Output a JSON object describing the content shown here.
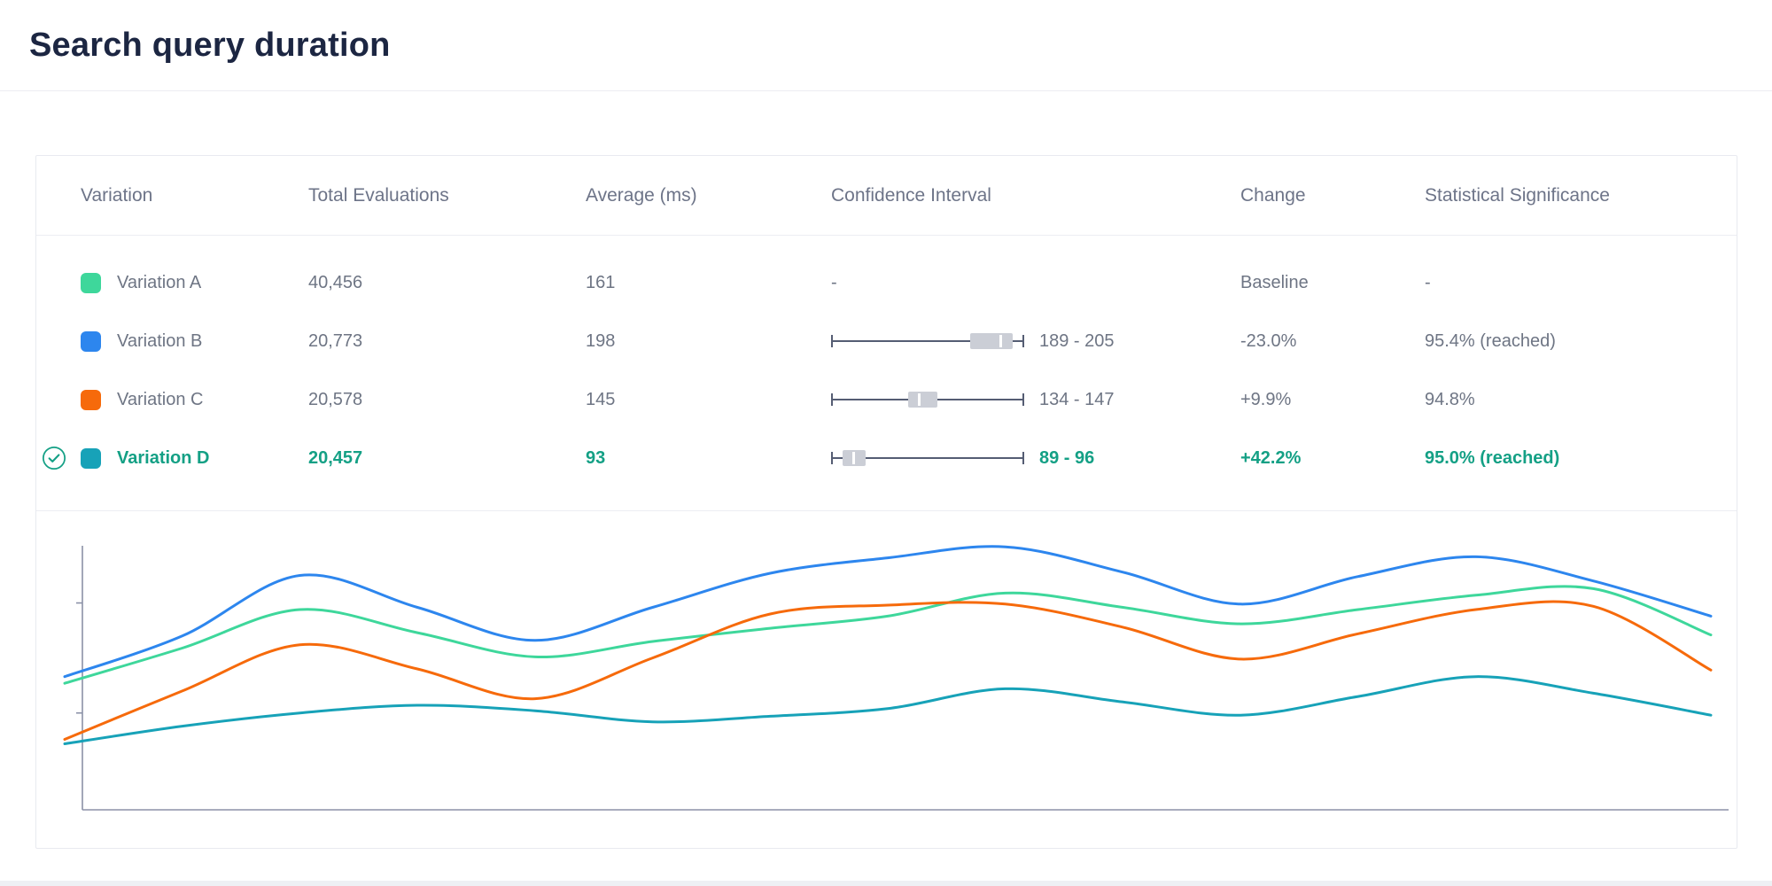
{
  "page": {
    "title": "Search query duration"
  },
  "table": {
    "columns": [
      "Variation",
      "Total Evaluations",
      "Average (ms)",
      "Confidence Interval",
      "Change",
      "Statistical Significance"
    ],
    "rows": [
      {
        "name": "Variation A",
        "color": "#3ed79b",
        "total": "40,456",
        "average": "161",
        "ci_text": "-",
        "ci_bar": null,
        "change": "Baseline",
        "significance": "-",
        "selected": false
      },
      {
        "name": "Variation B",
        "color": "#2d86ee",
        "total": "20,773",
        "average": "198",
        "ci_text": "189 - 205",
        "ci_bar": {
          "box_start": 0.72,
          "box_end": 0.94,
          "tick": 0.87
        },
        "change": "-23.0%",
        "significance": "95.4% (reached)",
        "selected": false
      },
      {
        "name": "Variation C",
        "color": "#f66a0b",
        "total": "20,578",
        "average": "145",
        "ci_text": "134 - 147",
        "ci_bar": {
          "box_start": 0.4,
          "box_end": 0.55,
          "tick": 0.45
        },
        "change": "+9.9%",
        "significance": "94.8%",
        "selected": false
      },
      {
        "name": "Variation D",
        "color": "#17a2b8",
        "total": "20,457",
        "average": "93",
        "ci_text": "89 - 96",
        "ci_bar": {
          "box_start": 0.06,
          "box_end": 0.18,
          "tick": 0.11
        },
        "change": "+42.2%",
        "significance": "95.0% (reached)",
        "selected": true
      }
    ],
    "selected_accent_color": "#14a085"
  },
  "icons": {
    "selected_row": "check-circle-icon",
    "row_swatch": "color-swatch"
  },
  "chart_data": {
    "type": "line",
    "title": "Search query duration over time (ms)",
    "x": [
      0,
      1,
      2,
      3,
      4,
      5,
      6,
      7,
      8,
      9,
      10,
      11,
      12,
      13,
      14
    ],
    "series": [
      {
        "name": "Variation A",
        "color": "#3ed79b",
        "values": [
          127,
          159,
          194,
          173,
          151,
          165,
          177,
          188,
          209,
          196,
          181,
          194,
          207,
          213,
          171
        ]
      },
      {
        "name": "Variation B",
        "color": "#2d86ee",
        "values": [
          133,
          170,
          225,
          196,
          166,
          196,
          227,
          241,
          251,
          228,
          199,
          224,
          242,
          220,
          188
        ]
      },
      {
        "name": "Variation C",
        "color": "#f66a0b",
        "values": [
          76,
          120,
          162,
          140,
          113,
          150,
          190,
          198,
          199,
          178,
          149,
          172,
          194,
          197,
          139
        ]
      },
      {
        "name": "Variation D",
        "color": "#17a2b8",
        "values": [
          72,
          88,
          100,
          107,
          102,
          92,
          97,
          104,
          122,
          110,
          98,
          115,
          133,
          118,
          98
        ]
      }
    ],
    "ylim": [
      12,
      256
    ],
    "yticks": [
      100,
      200
    ],
    "ytick_labels_visible": false,
    "xtick_labels_visible": false,
    "xlabel": "",
    "ylabel": "",
    "grid": false,
    "legend": "none (series colors match table swatches)",
    "axis_color": "#8b91a7"
  }
}
